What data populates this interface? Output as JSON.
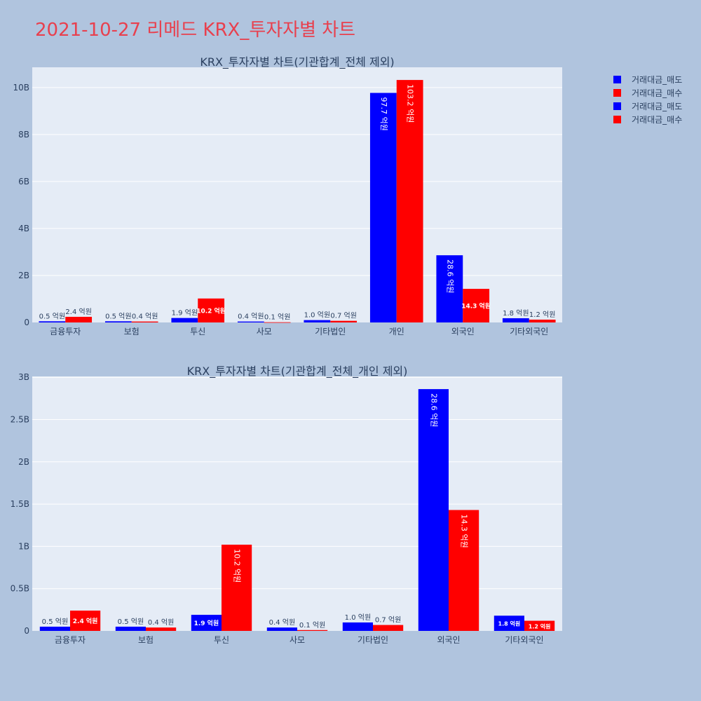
{
  "page": {
    "title": "2021-10-27 리메드 KRX_투자자별 차트"
  },
  "legend": {
    "items": [
      {
        "name": "거래대금_매도",
        "color": "#0000ff"
      },
      {
        "name": "거래대금_매수",
        "color": "#ff0000"
      },
      {
        "name": "거래대금_매도",
        "color": "#0000ff"
      },
      {
        "name": "거래대금_매수",
        "color": "#ff0000"
      }
    ]
  },
  "chart_data": [
    {
      "type": "bar",
      "title": "KRX_투자자별 차트(기관합계_전체 제외)",
      "categories": [
        "금융투자",
        "보험",
        "투신",
        "사모",
        "기타법인",
        "개인",
        "외국인",
        "기타외국인"
      ],
      "series": [
        {
          "name": "거래대금_매도",
          "color": "#0000ff",
          "values": [
            0.05,
            0.05,
            0.19,
            0.04,
            0.1,
            9.77,
            2.86,
            0.18
          ],
          "labels": [
            "0.5 억원",
            "0.5 억원",
            "1.9 억원",
            "0.4 억원",
            "1.0 억원",
            "97.7 억원",
            "28.6 억원",
            "1.8 억원"
          ]
        },
        {
          "name": "거래대금_매수",
          "color": "#ff0000",
          "values": [
            0.24,
            0.04,
            1.02,
            0.01,
            0.07,
            10.32,
            1.43,
            0.12
          ],
          "labels": [
            "2.4 억원",
            "0.4 억원",
            "10.2 억원",
            "0.1 억원",
            "0.7 억원",
            "103.2 억원",
            "14.3 억원",
            "1.2 억원"
          ]
        }
      ],
      "yticks": [
        0,
        2,
        4,
        6,
        8,
        10
      ],
      "ytick_labels": [
        "0",
        "2B",
        "4B",
        "6B",
        "8B",
        "10B"
      ],
      "ylim": [
        0,
        10.86
      ],
      "grid": true,
      "legend_position": "top-right"
    },
    {
      "type": "bar",
      "title": "KRX_투자자별 차트(기관합계_전체_개인 제외)",
      "categories": [
        "금융투자",
        "보험",
        "투신",
        "사모",
        "기타법인",
        "외국인",
        "기타외국인"
      ],
      "series": [
        {
          "name": "거래대금_매도",
          "color": "#0000ff",
          "values": [
            0.05,
            0.05,
            0.19,
            0.04,
            0.1,
            2.86,
            0.18
          ],
          "labels": [
            "0.5 억원",
            "0.5 억원",
            "1.9 억원",
            "0.4 억원",
            "1.0 억원",
            "28.6 억원",
            "1.8 억원"
          ]
        },
        {
          "name": "거래대금_매수",
          "color": "#ff0000",
          "values": [
            0.24,
            0.04,
            1.02,
            0.01,
            0.07,
            1.43,
            0.12
          ],
          "labels": [
            "2.4 억원",
            "0.4 억원",
            "10.2 억원",
            "0.1 억원",
            "0.7 억원",
            "14.3 억원",
            "1.2 억원"
          ]
        }
      ],
      "yticks": [
        0,
        0.5,
        1,
        1.5,
        2,
        2.5,
        3
      ],
      "ytick_labels": [
        "0",
        "0.5B",
        "1B",
        "1.5B",
        "2B",
        "2.5B",
        "3B"
      ],
      "ylim": [
        0,
        3.01
      ],
      "grid": true,
      "legend_position": "top-right"
    }
  ]
}
